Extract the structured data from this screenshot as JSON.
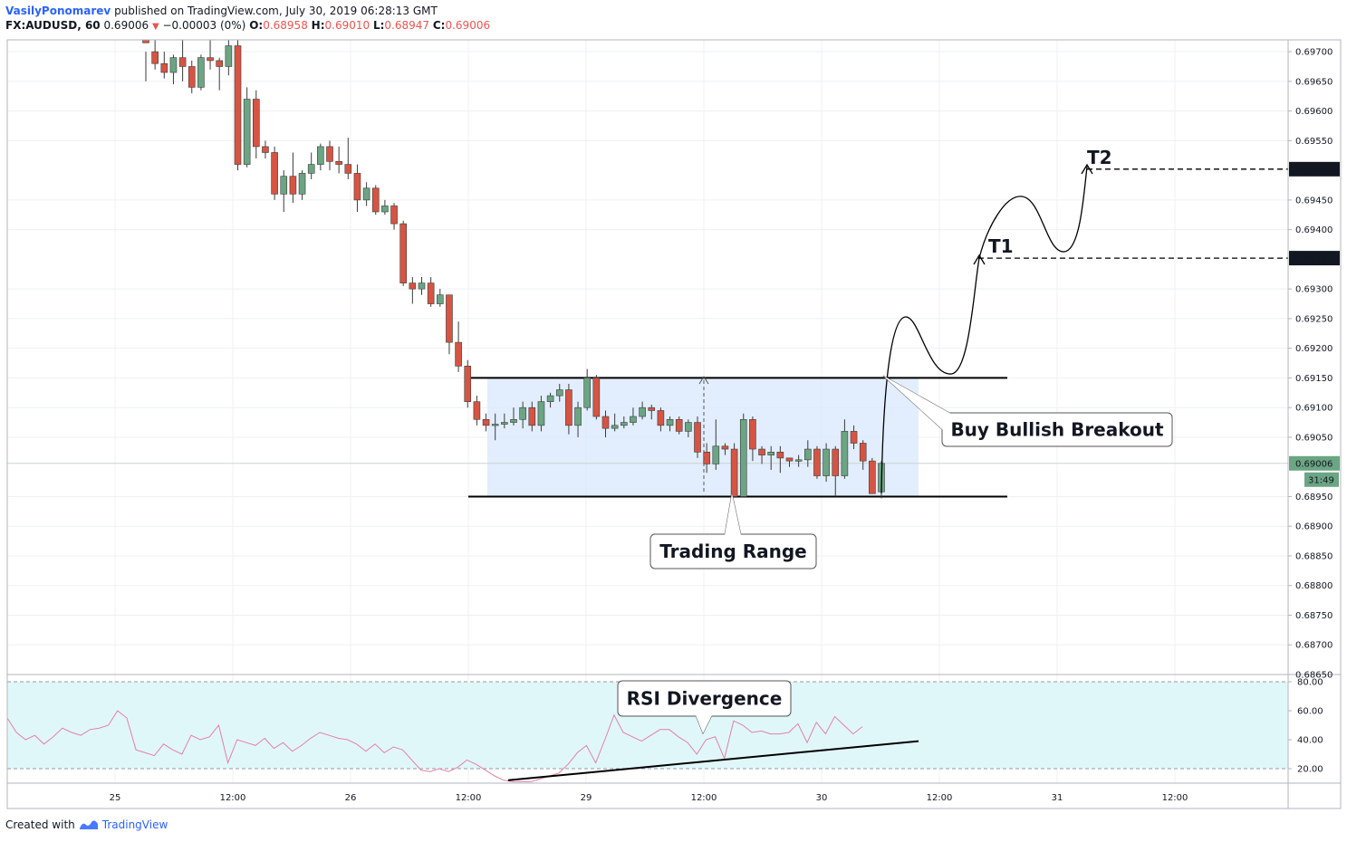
{
  "header": {
    "author": "VasilyPonomarev",
    "published": "published on TradingView.com, July 30, 2019 06:28:13 GMT",
    "symbol": "FX:AUDUSD, 60",
    "last": "0.69006",
    "change": "−0.00003 (0%)",
    "o_label": "O:",
    "o": "0.68958",
    "h_label": "H:",
    "h": "0.69010",
    "l_label": "L:",
    "l": "0.68947",
    "c_label": "C:",
    "c": "0.69006"
  },
  "footer": {
    "created": "Created with",
    "brand": "TradingView"
  },
  "colors": {
    "up": "#6ba583",
    "down": "#d75442",
    "range_fill": "#dbeafe",
    "rsi_fill": "#e0f7fa",
    "rsi_line": "#e57fa8"
  },
  "chart_data": {
    "type": "candlestick",
    "symbol": "FX:AUDUSD",
    "timeframe": "60",
    "ylim": [
      0.6865,
      0.6972
    ],
    "price_ticks": [
      "0.69700",
      "0.69650",
      "0.69600",
      "0.69550",
      "0.69450",
      "0.69400",
      "0.69300",
      "0.69250",
      "0.69200",
      "0.69150",
      "0.69100",
      "0.69050",
      "0.68950",
      "0.68900",
      "0.68850",
      "0.68800",
      "0.68750",
      "0.68700",
      "0.68650"
    ],
    "price_labels": [
      {
        "value": "0.69502",
        "price": 0.69502,
        "kind": "dark"
      },
      {
        "value": "0.69352",
        "price": 0.69352,
        "kind": "dark"
      },
      {
        "value": "0.69006",
        "price": 0.69006,
        "kind": "last"
      }
    ],
    "countdown": "31:49",
    "x_ticks": [
      "25",
      "12:00",
      "26",
      "12:00",
      "29",
      "12:00",
      "30",
      "12:00",
      "31",
      "12:00"
    ],
    "candles": [
      [
        0.6972,
        0.697,
        0.69715,
        0.6965
      ],
      [
        0.697,
        0.6972,
        0.6968,
        0.6967
      ],
      [
        0.6968,
        0.697,
        0.69665,
        0.69655
      ],
      [
        0.69665,
        0.69695,
        0.6969,
        0.69645
      ],
      [
        0.6969,
        0.6972,
        0.69675,
        0.6965
      ],
      [
        0.69675,
        0.69685,
        0.6964,
        0.6963
      ],
      [
        0.6964,
        0.69695,
        0.6969,
        0.69635
      ],
      [
        0.6969,
        0.6972,
        0.69685,
        0.6967
      ],
      [
        0.69685,
        0.6969,
        0.69675,
        0.69635
      ],
      [
        0.69675,
        0.6972,
        0.6971,
        0.6966
      ],
      [
        0.6971,
        0.6972,
        0.6951,
        0.695
      ],
      [
        0.6951,
        0.6964,
        0.6962,
        0.69505
      ],
      [
        0.6962,
        0.69635,
        0.6954,
        0.6952
      ],
      [
        0.6954,
        0.6955,
        0.6953,
        0.6952
      ],
      [
        0.6953,
        0.6954,
        0.6946,
        0.6945
      ],
      [
        0.6946,
        0.695,
        0.6949,
        0.6943
      ],
      [
        0.6949,
        0.6953,
        0.6946,
        0.69445
      ],
      [
        0.6946,
        0.695,
        0.69495,
        0.6945
      ],
      [
        0.69495,
        0.6953,
        0.6951,
        0.69485
      ],
      [
        0.6951,
        0.69545,
        0.6954,
        0.695
      ],
      [
        0.6954,
        0.6955,
        0.69515,
        0.695
      ],
      [
        0.69515,
        0.6954,
        0.6951,
        0.69495
      ],
      [
        0.6951,
        0.69555,
        0.69495,
        0.69485
      ],
      [
        0.69495,
        0.6951,
        0.6945,
        0.6943
      ],
      [
        0.6945,
        0.6948,
        0.6947,
        0.6944
      ],
      [
        0.6947,
        0.69475,
        0.6943,
        0.69425
      ],
      [
        0.6943,
        0.6945,
        0.6944,
        0.69425
      ],
      [
        0.6944,
        0.69445,
        0.6941,
        0.694
      ],
      [
        0.6941,
        0.69415,
        0.6931,
        0.69305
      ],
      [
        0.6931,
        0.6932,
        0.693,
        0.69275
      ],
      [
        0.693,
        0.6932,
        0.6931,
        0.6929
      ],
      [
        0.6931,
        0.6932,
        0.69275,
        0.6927
      ],
      [
        0.69275,
        0.693,
        0.6929,
        0.6927
      ],
      [
        0.6929,
        0.6929,
        0.6921,
        0.6919
      ],
      [
        0.6921,
        0.69245,
        0.6917,
        0.6916
      ],
      [
        0.6917,
        0.6918,
        0.6911,
        0.691
      ],
      [
        0.6911,
        0.6912,
        0.6908,
        0.6907
      ],
      [
        0.6908,
        0.6909,
        0.6907,
        0.6906
      ],
      [
        0.6907,
        0.6909,
        0.69072,
        0.69045
      ],
      [
        0.69072,
        0.6909,
        0.69075,
        0.69065
      ],
      [
        0.69075,
        0.691,
        0.6908,
        0.6907
      ],
      [
        0.6908,
        0.6911,
        0.691,
        0.69065
      ],
      [
        0.691,
        0.6911,
        0.6907,
        0.6906
      ],
      [
        0.6907,
        0.6912,
        0.6911,
        0.6906
      ],
      [
        0.6911,
        0.69125,
        0.6912,
        0.691
      ],
      [
        0.6912,
        0.6914,
        0.6913,
        0.6911
      ],
      [
        0.6913,
        0.6914,
        0.6907,
        0.69055
      ],
      [
        0.6907,
        0.6911,
        0.691,
        0.6905
      ],
      [
        0.691,
        0.69165,
        0.6915,
        0.69095
      ],
      [
        0.6915,
        0.69155,
        0.69085,
        0.6908
      ],
      [
        0.69085,
        0.69095,
        0.69065,
        0.6905
      ],
      [
        0.69065,
        0.6909,
        0.6907,
        0.6906
      ],
      [
        0.6907,
        0.69085,
        0.69075,
        0.69065
      ],
      [
        0.69075,
        0.691,
        0.69085,
        0.6907
      ],
      [
        0.69085,
        0.6911,
        0.691,
        0.6908
      ],
      [
        0.691,
        0.69105,
        0.69095,
        0.6908
      ],
      [
        0.69095,
        0.691,
        0.6907,
        0.6906
      ],
      [
        0.6907,
        0.69085,
        0.6908,
        0.6906
      ],
      [
        0.6908,
        0.69085,
        0.6906,
        0.69055
      ],
      [
        0.6906,
        0.6908,
        0.69075,
        0.6905
      ],
      [
        0.69075,
        0.69085,
        0.69025,
        0.69015
      ],
      [
        0.69025,
        0.6904,
        0.69005,
        0.6899
      ],
      [
        0.69005,
        0.6908,
        0.69035,
        0.68995
      ],
      [
        0.69035,
        0.6904,
        0.6903,
        0.6902
      ],
      [
        0.6903,
        0.6904,
        0.6895,
        0.6895
      ],
      [
        0.6895,
        0.6909,
        0.6908,
        0.6895
      ],
      [
        0.6908,
        0.69085,
        0.6903,
        0.6901
      ],
      [
        0.6903,
        0.69035,
        0.6902,
        0.69005
      ],
      [
        0.6902,
        0.69035,
        0.69025,
        0.68995
      ],
      [
        0.69025,
        0.69035,
        0.69015,
        0.6899
      ],
      [
        0.69015,
        0.69015,
        0.6901,
        0.69
      ],
      [
        0.6901,
        0.6902,
        0.69012,
        0.69
      ],
      [
        0.69012,
        0.69045,
        0.6903,
        0.69
      ],
      [
        0.6903,
        0.69035,
        0.68985,
        0.6898
      ],
      [
        0.68985,
        0.6904,
        0.6903,
        0.68975
      ],
      [
        0.6903,
        0.69035,
        0.68985,
        0.6895
      ],
      [
        0.68985,
        0.6908,
        0.6906,
        0.6898
      ],
      [
        0.6906,
        0.6907,
        0.6904,
        0.6903
      ],
      [
        0.6904,
        0.69045,
        0.6901,
        0.68995
      ],
      [
        0.6901,
        0.69015,
        0.68955,
        0.68955
      ],
      [
        0.68958,
        0.6901,
        0.69006,
        0.68947
      ]
    ],
    "rsi": {
      "levels": [
        "80.00",
        "60.00",
        "40.00",
        "20.00"
      ],
      "ylim": [
        10,
        85
      ],
      "values": [
        55,
        45,
        40,
        43,
        37,
        42,
        48,
        45,
        43,
        47,
        48,
        50,
        60,
        55,
        33,
        31,
        29,
        37,
        33,
        30,
        43,
        40,
        42,
        50,
        24,
        40,
        38,
        36,
        41,
        34,
        38,
        32,
        36,
        41,
        45,
        43,
        41,
        40,
        37,
        32,
        37,
        31,
        35,
        33,
        26,
        19,
        18,
        20,
        18,
        21,
        26,
        23,
        19,
        15,
        12,
        11,
        11,
        11,
        13,
        15,
        17,
        23,
        31,
        36,
        24,
        40,
        57,
        45,
        42,
        39,
        43,
        47,
        47,
        42,
        38,
        30,
        40,
        42,
        27,
        53,
        50,
        45,
        46,
        44,
        44,
        45,
        51,
        38,
        52,
        44,
        56,
        50,
        44,
        49
      ]
    },
    "annotations": [
      {
        "label": "Trading Range"
      },
      {
        "label": "Buy Bullish Breakout"
      },
      {
        "label": "RSI Divergence"
      },
      {
        "label": "T1"
      },
      {
        "label": "T2"
      }
    ],
    "levels": {
      "range_top": 0.6915,
      "range_bottom": 0.6895,
      "t1": 0.69352,
      "t2": 0.69502
    }
  }
}
